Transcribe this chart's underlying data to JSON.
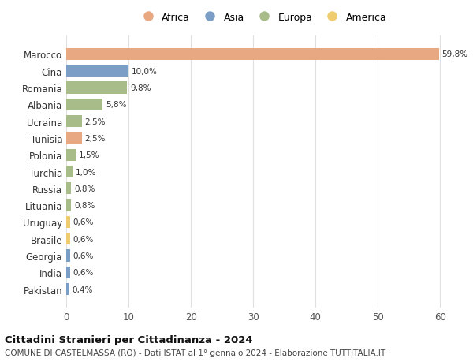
{
  "countries": [
    "Marocco",
    "Cina",
    "Romania",
    "Albania",
    "Ucraina",
    "Tunisia",
    "Polonia",
    "Turchia",
    "Russia",
    "Lituania",
    "Uruguay",
    "Brasile",
    "Georgia",
    "India",
    "Pakistan"
  ],
  "values": [
    59.8,
    10.0,
    9.8,
    5.8,
    2.5,
    2.5,
    1.5,
    1.0,
    0.8,
    0.8,
    0.6,
    0.6,
    0.6,
    0.6,
    0.4
  ],
  "labels": [
    "59,8%",
    "10,0%",
    "9,8%",
    "5,8%",
    "2,5%",
    "2,5%",
    "1,5%",
    "1,0%",
    "0,8%",
    "0,8%",
    "0,6%",
    "0,6%",
    "0,6%",
    "0,6%",
    "0,4%"
  ],
  "continents": [
    "Africa",
    "Asia",
    "Europa",
    "Europa",
    "Europa",
    "Africa",
    "Europa",
    "Europa",
    "Europa",
    "Europa",
    "America",
    "America",
    "Asia",
    "Asia",
    "Asia"
  ],
  "colors": {
    "Africa": "#E8A882",
    "Asia": "#7A9EC5",
    "Europa": "#A8BC8A",
    "America": "#F0CC70"
  },
  "legend_order": [
    "Africa",
    "Asia",
    "Europa",
    "America"
  ],
  "title": "Cittadini Stranieri per Cittadinanza - 2024",
  "subtitle": "COMUNE DI CASTELMASSA (RO) - Dati ISTAT al 1° gennaio 2024 - Elaborazione TUTTITALIA.IT",
  "xlim": [
    0,
    63
  ],
  "xticks": [
    0,
    10,
    20,
    30,
    40,
    50,
    60
  ],
  "bg_color": "#ffffff",
  "grid_color": "#e0e0e0",
  "bar_height": 0.72
}
